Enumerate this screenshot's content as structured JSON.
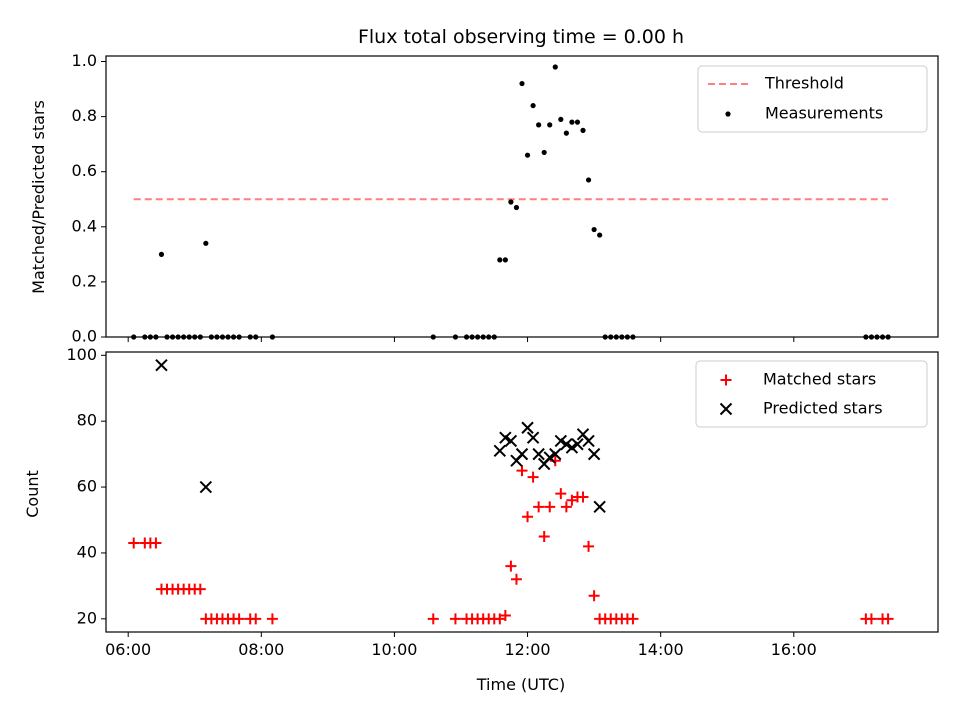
{
  "chart_data": [
    {
      "type": "scatter",
      "title": "Flux total observing time = 0.00 h",
      "xlabel": "",
      "ylabel": "Matched/Predicted stars",
      "ylim": [
        0,
        1.02
      ],
      "y_ticks": [
        "0.0",
        "0.2",
        "0.4",
        "0.6",
        "0.8",
        "1.0"
      ],
      "legend_position": "top-right",
      "threshold": {
        "name": "Threshold",
        "value": 0.5,
        "x_range": [
          "06:05",
          "17:25"
        ],
        "color": "#ff7f7f",
        "style": "dashed"
      },
      "series": [
        {
          "name": "Measurements",
          "color": "#000000",
          "marker": "dot",
          "points": [
            [
              "06:05",
              0.0
            ],
            [
              "06:15",
              0.0
            ],
            [
              "06:20",
              0.0
            ],
            [
              "06:25",
              0.0
            ],
            [
              "06:30",
              0.3
            ],
            [
              "06:35",
              0.0
            ],
            [
              "06:40",
              0.0
            ],
            [
              "06:45",
              0.0
            ],
            [
              "06:50",
              0.0
            ],
            [
              "06:55",
              0.0
            ],
            [
              "07:00",
              0.0
            ],
            [
              "07:05",
              0.0
            ],
            [
              "07:10",
              0.34
            ],
            [
              "07:15",
              0.0
            ],
            [
              "07:20",
              0.0
            ],
            [
              "07:25",
              0.0
            ],
            [
              "07:30",
              0.0
            ],
            [
              "07:35",
              0.0
            ],
            [
              "07:40",
              0.0
            ],
            [
              "07:50",
              0.0
            ],
            [
              "07:55",
              0.0
            ],
            [
              "08:10",
              0.0
            ],
            [
              "10:35",
              0.0
            ],
            [
              "10:55",
              0.0
            ],
            [
              "11:05",
              0.0
            ],
            [
              "11:10",
              0.0
            ],
            [
              "11:15",
              0.0
            ],
            [
              "11:20",
              0.0
            ],
            [
              "11:25",
              0.0
            ],
            [
              "11:30",
              0.0
            ],
            [
              "11:35",
              0.28
            ],
            [
              "11:40",
              0.28
            ],
            [
              "11:45",
              0.49
            ],
            [
              "11:50",
              0.47
            ],
            [
              "11:55",
              0.92
            ],
            [
              "12:00",
              0.66
            ],
            [
              "12:05",
              0.84
            ],
            [
              "12:10",
              0.77
            ],
            [
              "12:15",
              0.67
            ],
            [
              "12:20",
              0.77
            ],
            [
              "12:25",
              0.98
            ],
            [
              "12:30",
              0.79
            ],
            [
              "12:35",
              0.74
            ],
            [
              "12:40",
              0.78
            ],
            [
              "12:45",
              0.78
            ],
            [
              "12:50",
              0.75
            ],
            [
              "12:55",
              0.57
            ],
            [
              "13:00",
              0.39
            ],
            [
              "13:05",
              0.37
            ],
            [
              "13:10",
              0.0
            ],
            [
              "13:15",
              0.0
            ],
            [
              "13:20",
              0.0
            ],
            [
              "13:25",
              0.0
            ],
            [
              "13:30",
              0.0
            ],
            [
              "13:35",
              0.0
            ],
            [
              "17:05",
              0.0
            ],
            [
              "17:10",
              0.0
            ],
            [
              "17:15",
              0.0
            ],
            [
              "17:20",
              0.0
            ],
            [
              "17:25",
              0.0
            ]
          ]
        }
      ]
    },
    {
      "type": "scatter",
      "title": "",
      "xlabel": "Time (UTC)",
      "ylabel": "Count",
      "xlim": [
        "05:40",
        "18:10"
      ],
      "ylim": [
        16,
        101
      ],
      "x_ticks": [
        "06:00",
        "08:00",
        "10:00",
        "12:00",
        "14:00",
        "16:00"
      ],
      "y_ticks": [
        "20",
        "40",
        "60",
        "80",
        "100"
      ],
      "legend_position": "top-right",
      "series": [
        {
          "name": "Matched stars",
          "color": "#ff0000",
          "marker": "plus",
          "points": [
            [
              "06:05",
              43
            ],
            [
              "06:15",
              43
            ],
            [
              "06:20",
              43
            ],
            [
              "06:25",
              43
            ],
            [
              "06:30",
              29
            ],
            [
              "06:35",
              29
            ],
            [
              "06:40",
              29
            ],
            [
              "06:45",
              29
            ],
            [
              "06:50",
              29
            ],
            [
              "06:55",
              29
            ],
            [
              "07:00",
              29
            ],
            [
              "07:05",
              29
            ],
            [
              "07:10",
              20
            ],
            [
              "07:15",
              20
            ],
            [
              "07:20",
              20
            ],
            [
              "07:25",
              20
            ],
            [
              "07:30",
              20
            ],
            [
              "07:35",
              20
            ],
            [
              "07:40",
              20
            ],
            [
              "07:50",
              20
            ],
            [
              "07:55",
              20
            ],
            [
              "08:10",
              20
            ],
            [
              "10:35",
              20
            ],
            [
              "10:55",
              20
            ],
            [
              "11:05",
              20
            ],
            [
              "11:10",
              20
            ],
            [
              "11:15",
              20
            ],
            [
              "11:20",
              20
            ],
            [
              "11:25",
              20
            ],
            [
              "11:30",
              20
            ],
            [
              "11:35",
              20
            ],
            [
              "11:40",
              21
            ],
            [
              "11:45",
              36
            ],
            [
              "11:50",
              32
            ],
            [
              "11:55",
              65
            ],
            [
              "12:00",
              51
            ],
            [
              "12:05",
              63
            ],
            [
              "12:10",
              54
            ],
            [
              "12:15",
              45
            ],
            [
              "12:20",
              54
            ],
            [
              "12:25",
              68
            ],
            [
              "12:30",
              58
            ],
            [
              "12:35",
              54
            ],
            [
              "12:40",
              56
            ],
            [
              "12:45",
              57
            ],
            [
              "12:50",
              57
            ],
            [
              "12:55",
              42
            ],
            [
              "13:00",
              27
            ],
            [
              "13:05",
              20
            ],
            [
              "13:10",
              20
            ],
            [
              "13:15",
              20
            ],
            [
              "13:20",
              20
            ],
            [
              "13:25",
              20
            ],
            [
              "13:30",
              20
            ],
            [
              "13:35",
              20
            ],
            [
              "17:05",
              20
            ],
            [
              "17:10",
              20
            ],
            [
              "17:20",
              20
            ],
            [
              "17:25",
              20
            ]
          ]
        },
        {
          "name": "Predicted stars",
          "color": "#000000",
          "marker": "x",
          "points": [
            [
              "06:30",
              97
            ],
            [
              "07:10",
              60
            ],
            [
              "11:35",
              71
            ],
            [
              "11:40",
              75
            ],
            [
              "11:45",
              74
            ],
            [
              "11:50",
              68
            ],
            [
              "11:55",
              70
            ],
            [
              "12:00",
              78
            ],
            [
              "12:05",
              75
            ],
            [
              "12:10",
              70
            ],
            [
              "12:15",
              67
            ],
            [
              "12:20",
              69
            ],
            [
              "12:25",
              70
            ],
            [
              "12:30",
              74
            ],
            [
              "12:35",
              73
            ],
            [
              "12:40",
              72
            ],
            [
              "12:45",
              73
            ],
            [
              "12:50",
              76
            ],
            [
              "12:55",
              74
            ],
            [
              "13:00",
              70
            ],
            [
              "13:05",
              54
            ]
          ]
        }
      ]
    }
  ]
}
